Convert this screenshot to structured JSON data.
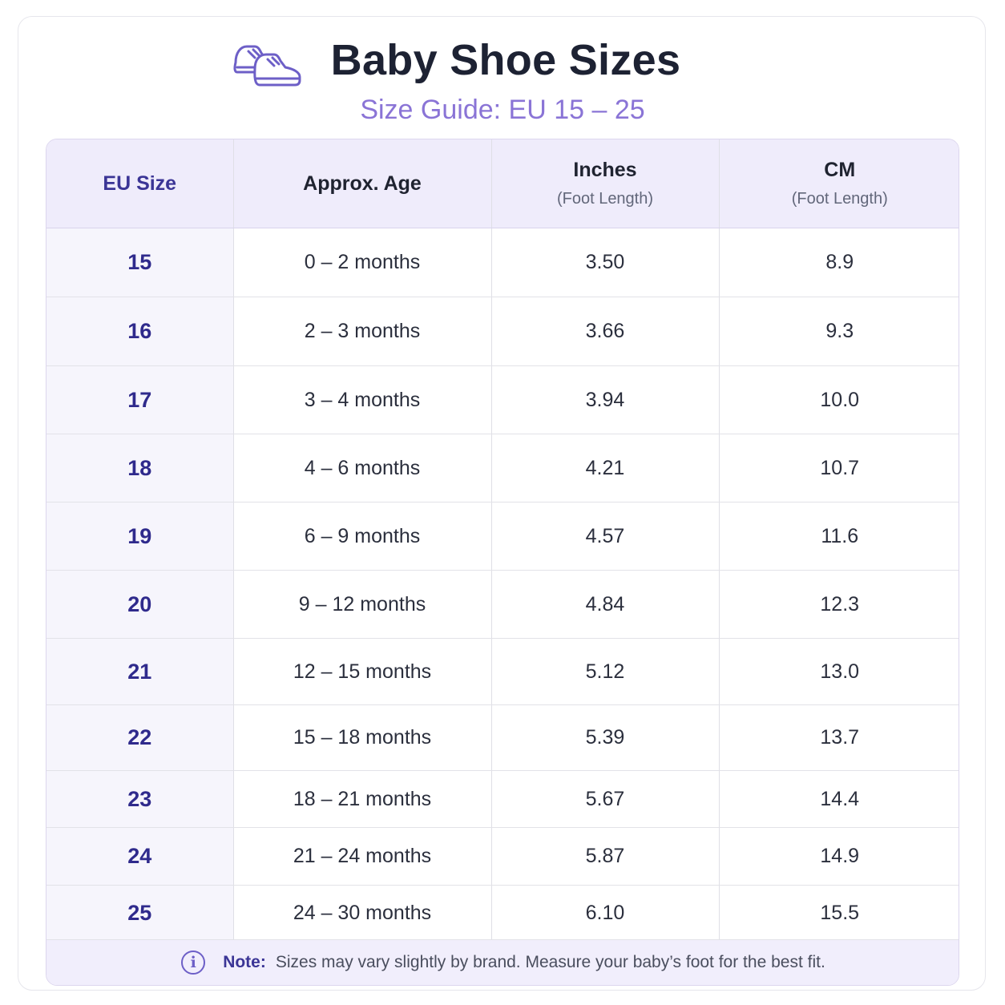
{
  "header": {
    "title": "Baby Shoe Sizes",
    "subtitle": "Size Guide: EU 15 – 25",
    "icon": "baby-shoes-icon"
  },
  "table": {
    "columns": [
      {
        "label": "EU Size",
        "sub": ""
      },
      {
        "label": "Approx. Age",
        "sub": ""
      },
      {
        "label": "Inches",
        "sub": "(Foot Length)"
      },
      {
        "label": "CM",
        "sub": "(Foot Length)"
      }
    ],
    "rows": [
      {
        "eu": "15",
        "age": "0 – 2 months",
        "inches": "3.50",
        "cm": "8.9"
      },
      {
        "eu": "16",
        "age": "2 – 3 months",
        "inches": "3.66",
        "cm": "9.3"
      },
      {
        "eu": "17",
        "age": "3 – 4 months",
        "inches": "3.94",
        "cm": "10.0"
      },
      {
        "eu": "18",
        "age": "4 – 6 months",
        "inches": "4.21",
        "cm": "10.7"
      },
      {
        "eu": "19",
        "age": "6 – 9 months",
        "inches": "4.57",
        "cm": "11.6"
      },
      {
        "eu": "20",
        "age": "9 – 12 months",
        "inches": "4.84",
        "cm": "12.3"
      },
      {
        "eu": "21",
        "age": "12 – 15 months",
        "inches": "5.12",
        "cm": "13.0"
      },
      {
        "eu": "22",
        "age": "15 – 18 months",
        "inches": "5.39",
        "cm": "13.7"
      },
      {
        "eu": "23",
        "age": "18 – 21 months",
        "inches": "5.67",
        "cm": "14.4"
      },
      {
        "eu": "24",
        "age": "21 – 24 months",
        "inches": "5.87",
        "cm": "14.9"
      },
      {
        "eu": "25",
        "age": "24 – 30 months",
        "inches": "6.10",
        "cm": "15.5"
      }
    ]
  },
  "note": {
    "icon": "info-icon",
    "label": "Note:",
    "text": "Sizes may vary slightly by brand. Measure your baby’s foot for the best fit."
  },
  "colors": {
    "accent": "#3b3596",
    "subtitle": "#8a74d6",
    "header_bg": "#efecfb"
  }
}
